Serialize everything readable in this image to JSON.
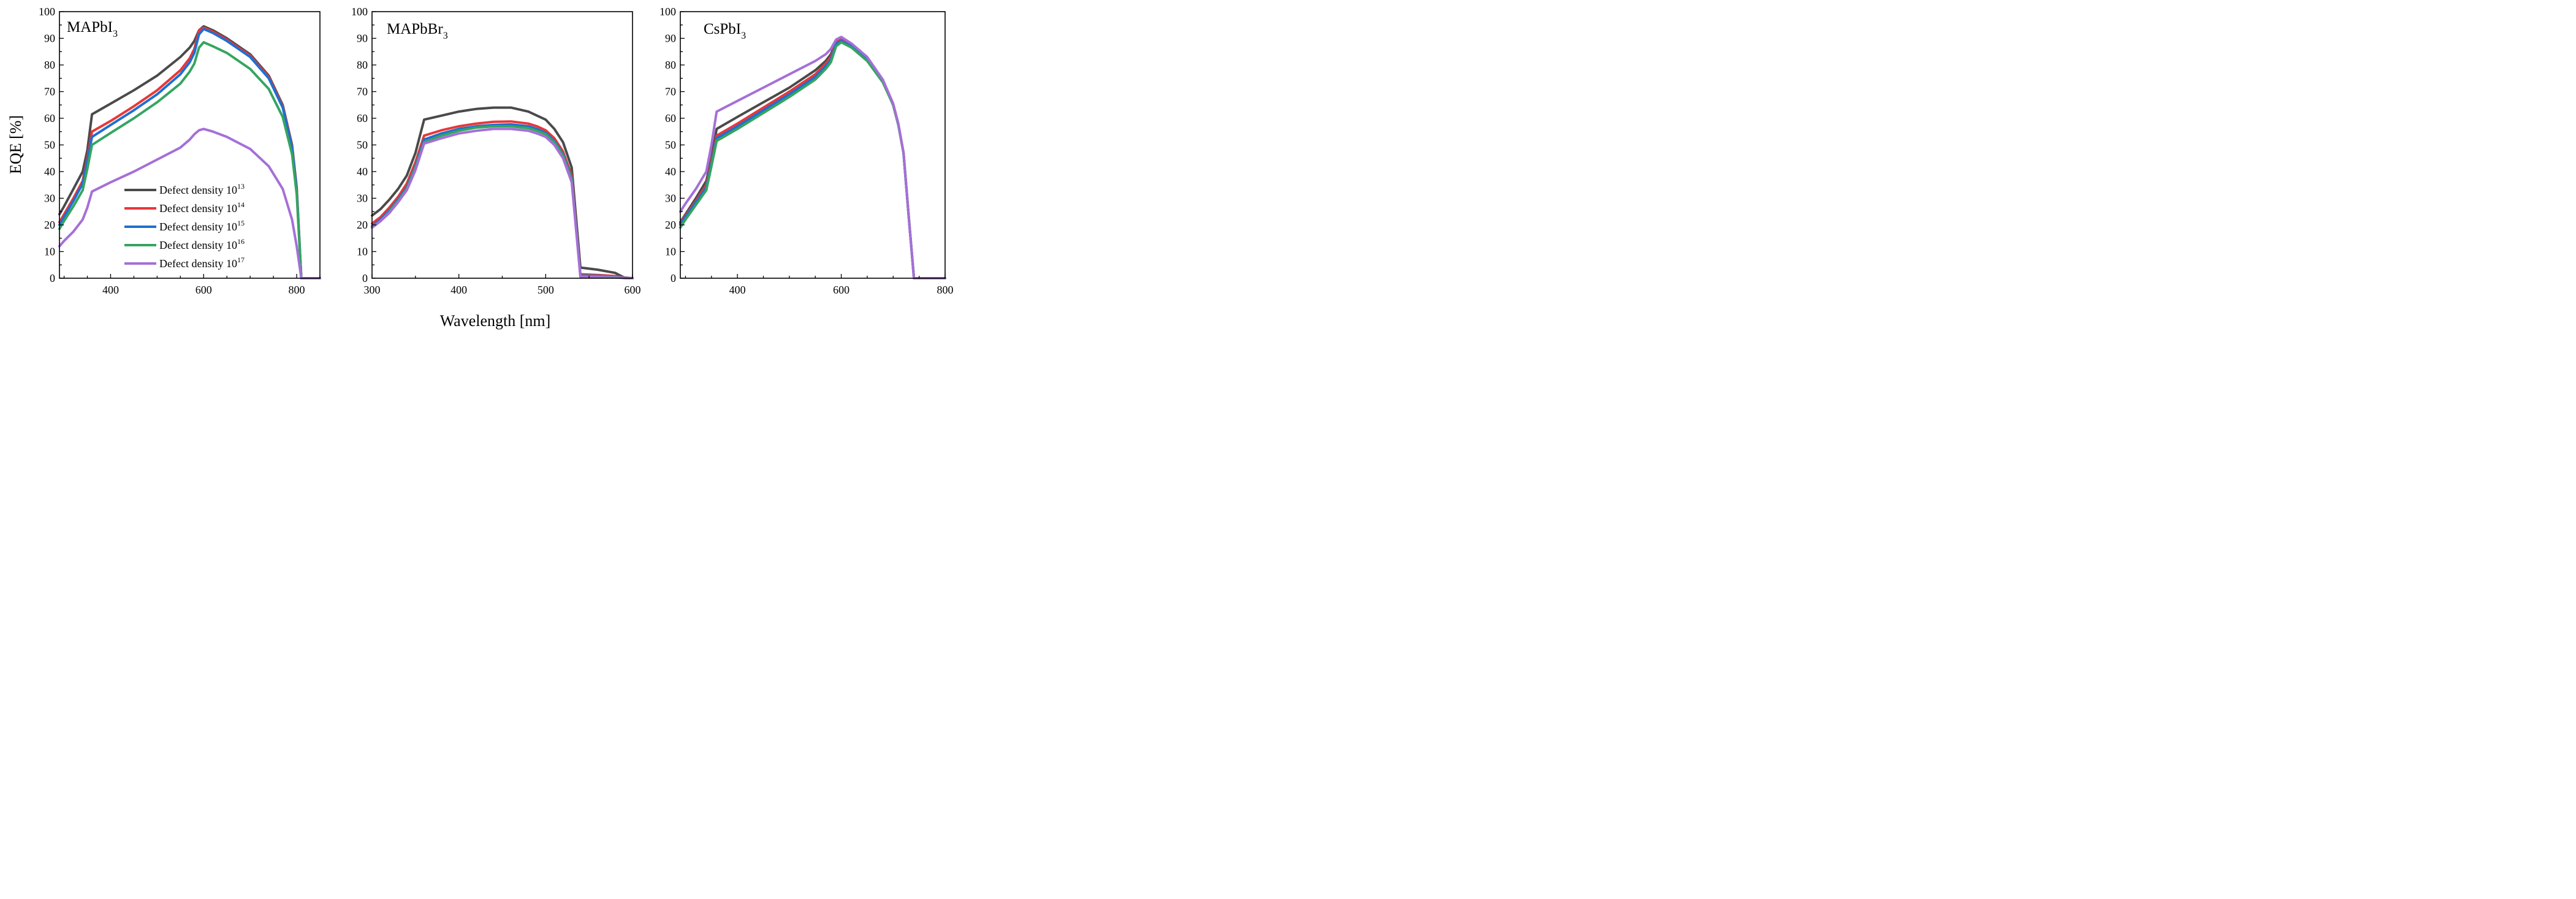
{
  "figure": {
    "xlabel": "Wavelength [nm]",
    "ylabel": "EQE [%]"
  },
  "legend": {
    "position": "lower-left of first panel",
    "entries": [
      {
        "label": "Defect density 10",
        "exponent": "13",
        "color": "#4a4a4a"
      },
      {
        "label": "Defect density 10",
        "exponent": "14",
        "color": "#e8373a"
      },
      {
        "label": "Defect density 10",
        "exponent": "15",
        "color": "#1f6fd0"
      },
      {
        "label": "Defect density 10",
        "exponent": "16",
        "color": "#35a560"
      },
      {
        "label": "Defect density 10",
        "exponent": "17",
        "color": "#a56fd8"
      }
    ]
  },
  "chart_data": [
    {
      "type": "line",
      "title_main": "MAPbI",
      "title_sub": "3",
      "xlabel": "Wavelength [nm]",
      "ylabel": "EQE [%]",
      "xlim": [
        290,
        850
      ],
      "ylim": [
        0,
        100
      ],
      "xticks": [
        400,
        600,
        800
      ],
      "x_minor": 50,
      "yticks": [
        0,
        10,
        20,
        30,
        40,
        50,
        60,
        70,
        80,
        90,
        100
      ],
      "grid": false,
      "series": [
        {
          "name": "Defect density 10^13",
          "color": "#4a4a4a",
          "x": [
            290,
            300,
            320,
            340,
            350,
            360,
            400,
            450,
            500,
            550,
            570,
            580,
            590,
            600,
            620,
            650,
            700,
            740,
            770,
            790,
            800,
            810,
            850
          ],
          "y": [
            24,
            27,
            33.5,
            40,
            48,
            61.5,
            65.5,
            70.5,
            76,
            83,
            86.5,
            89,
            93,
            94.5,
            93,
            90,
            84,
            76,
            65,
            50,
            34,
            0,
            0
          ]
        },
        {
          "name": "Defect density 10^14",
          "color": "#e8373a",
          "x": [
            290,
            300,
            320,
            340,
            350,
            360,
            400,
            450,
            500,
            550,
            570,
            580,
            590,
            600,
            620,
            650,
            700,
            740,
            770,
            790,
            800,
            810,
            850
          ],
          "y": [
            21,
            24,
            30,
            36.5,
            45,
            55,
            59,
            64.5,
            70.5,
            78,
            82.5,
            86,
            93,
            94,
            92.5,
            89.5,
            83.5,
            75.5,
            64.5,
            49.5,
            33.5,
            0,
            0
          ]
        },
        {
          "name": "Defect density 10^15",
          "color": "#1f6fd0",
          "x": [
            290,
            300,
            320,
            340,
            350,
            360,
            400,
            450,
            500,
            550,
            570,
            580,
            590,
            600,
            620,
            650,
            700,
            740,
            770,
            790,
            800,
            810,
            850
          ],
          "y": [
            20,
            23,
            29,
            35.5,
            44,
            53,
            57.5,
            63,
            69,
            76.5,
            81,
            84.5,
            91.5,
            93.5,
            92,
            89,
            83,
            75,
            64,
            49,
            33,
            0,
            0
          ]
        },
        {
          "name": "Defect density 10^16",
          "color": "#35a560",
          "x": [
            290,
            300,
            320,
            340,
            350,
            360,
            400,
            450,
            500,
            550,
            570,
            580,
            590,
            600,
            620,
            650,
            700,
            740,
            770,
            790,
            800,
            810,
            850
          ],
          "y": [
            18.5,
            21.5,
            27,
            33,
            41,
            50,
            54.5,
            60,
            66,
            73,
            77.5,
            80.5,
            86.5,
            88.5,
            87,
            84.5,
            78.5,
            71,
            60.5,
            46.5,
            31.5,
            0,
            0
          ]
        },
        {
          "name": "Defect density 10^17",
          "color": "#a56fd8",
          "x": [
            290,
            300,
            320,
            340,
            350,
            360,
            400,
            450,
            500,
            550,
            570,
            580,
            590,
            600,
            620,
            650,
            700,
            740,
            770,
            790,
            800,
            810,
            850
          ],
          "y": [
            12,
            14,
            17.5,
            22,
            26.5,
            32.5,
            36,
            40,
            44.5,
            49,
            52,
            54,
            55.5,
            56,
            55,
            53,
            48.5,
            42,
            33.5,
            22,
            12,
            0,
            0
          ]
        }
      ]
    },
    {
      "type": "line",
      "title_main": "MAPbBr",
      "title_sub": "3",
      "xlabel": "Wavelength [nm]",
      "ylabel": "EQE [%]",
      "xlim": [
        300,
        600
      ],
      "ylim": [
        0,
        100
      ],
      "xticks": [
        300,
        400,
        500,
        600
      ],
      "x_minor": 50,
      "yticks": [
        0,
        10,
        20,
        30,
        40,
        50,
        60,
        70,
        80,
        90,
        100
      ],
      "grid": false,
      "series": [
        {
          "name": "Defect density 10^13",
          "color": "#4a4a4a",
          "x": [
            300,
            310,
            320,
            330,
            340,
            350,
            360,
            380,
            400,
            420,
            440,
            460,
            480,
            490,
            500,
            510,
            520,
            530,
            540,
            560,
            580,
            590,
            600
          ],
          "y": [
            23.5,
            26,
            29.5,
            33.5,
            38.5,
            47,
            59.5,
            61,
            62.5,
            63.5,
            64,
            64,
            62.5,
            61,
            59.5,
            56,
            51,
            41.5,
            4,
            3.2,
            2,
            0.3,
            0
          ]
        },
        {
          "name": "Defect density 10^14",
          "color": "#e8373a",
          "x": [
            300,
            310,
            320,
            330,
            340,
            350,
            360,
            380,
            400,
            420,
            440,
            460,
            480,
            490,
            500,
            510,
            520,
            530,
            540,
            560,
            580,
            590,
            600
          ],
          "y": [
            20.5,
            23,
            26.5,
            30.5,
            35.5,
            43.5,
            53.5,
            55.5,
            57,
            58,
            58.7,
            58.8,
            58,
            57,
            55.5,
            52.5,
            47.5,
            38.5,
            1.5,
            1.2,
            0.8,
            0.2,
            0
          ]
        },
        {
          "name": "Defect density 10^15",
          "color": "#1f6fd0",
          "x": [
            300,
            310,
            320,
            330,
            340,
            350,
            360,
            380,
            400,
            420,
            440,
            460,
            480,
            490,
            500,
            510,
            520,
            530,
            540,
            560,
            580,
            590,
            600
          ],
          "y": [
            19.5,
            22,
            25.5,
            29.5,
            34,
            42,
            52,
            54.3,
            56,
            57,
            57.5,
            57.7,
            57,
            56,
            54.5,
            51.5,
            46.5,
            37.5,
            1,
            0.9,
            0.6,
            0.1,
            0
          ]
        },
        {
          "name": "Defect density 10^16",
          "color": "#35a560",
          "x": [
            300,
            310,
            320,
            330,
            340,
            350,
            360,
            380,
            400,
            420,
            440,
            460,
            480,
            490,
            500,
            510,
            520,
            530,
            540,
            560,
            580,
            590,
            600
          ],
          "y": [
            19,
            21.5,
            25,
            29,
            33.5,
            41.5,
            51,
            53.5,
            55.3,
            56.5,
            57,
            57,
            56.3,
            55.3,
            54,
            51,
            46,
            37,
            0.8,
            0.7,
            0.5,
            0.1,
            0
          ]
        },
        {
          "name": "Defect density 10^17",
          "color": "#a56fd8",
          "x": [
            300,
            310,
            320,
            330,
            340,
            350,
            360,
            380,
            400,
            420,
            440,
            460,
            480,
            490,
            500,
            510,
            520,
            530,
            540,
            560,
            580,
            590,
            600
          ],
          "y": [
            19,
            21.5,
            24.5,
            28.5,
            33,
            40.5,
            50.5,
            52.5,
            54.3,
            55.3,
            56,
            56,
            55.3,
            54.3,
            53,
            50,
            45,
            36,
            0.5,
            0.4,
            0.3,
            0.1,
            0
          ]
        }
      ]
    },
    {
      "type": "line",
      "title_main": "CsPbI",
      "title_sub": "3",
      "xlabel": "Wavelength [nm]",
      "ylabel": "EQE [%]",
      "xlim": [
        290,
        800
      ],
      "ylim": [
        0,
        100
      ],
      "xticks": [
        400,
        600,
        800
      ],
      "x_minor": 50,
      "yticks": [
        0,
        10,
        20,
        30,
        40,
        50,
        60,
        70,
        80,
        90,
        100
      ],
      "grid": false,
      "series": [
        {
          "name": "Defect density 10^13",
          "color": "#4a4a4a",
          "x": [
            290,
            300,
            320,
            340,
            350,
            360,
            400,
            450,
            500,
            550,
            570,
            580,
            590,
            600,
            620,
            650,
            680,
            700,
            710,
            720,
            730,
            740,
            800
          ],
          "y": [
            21,
            24,
            30,
            36.5,
            45,
            56,
            60.5,
            66,
            71.5,
            78,
            81.5,
            84,
            88.5,
            89.5,
            87,
            82,
            74,
            65,
            57.5,
            47,
            23,
            0,
            0
          ]
        },
        {
          "name": "Defect density 10^14",
          "color": "#e8373a",
          "x": [
            290,
            300,
            320,
            340,
            350,
            360,
            400,
            450,
            500,
            550,
            570,
            580,
            590,
            600,
            620,
            650,
            680,
            700,
            710,
            720,
            730,
            740,
            800
          ],
          "y": [
            20.5,
            23.5,
            29,
            35,
            44,
            53.5,
            58,
            64,
            70,
            76.5,
            80.5,
            83,
            88.5,
            89.5,
            87,
            82,
            74,
            65,
            57.5,
            47,
            23,
            0,
            0
          ]
        },
        {
          "name": "Defect density 10^15",
          "color": "#1f6fd0",
          "x": [
            290,
            300,
            320,
            340,
            350,
            360,
            400,
            450,
            500,
            550,
            570,
            580,
            590,
            600,
            620,
            650,
            680,
            700,
            710,
            720,
            730,
            740,
            800
          ],
          "y": [
            20,
            23,
            28.5,
            34,
            43,
            52.5,
            57,
            63,
            69,
            75.5,
            79.5,
            82,
            88,
            89,
            87,
            82,
            74,
            65,
            57.5,
            47,
            23,
            0,
            0
          ]
        },
        {
          "name": "Defect density 10^16",
          "color": "#35a560",
          "x": [
            290,
            300,
            320,
            340,
            350,
            360,
            400,
            450,
            500,
            550,
            570,
            580,
            590,
            600,
            620,
            650,
            680,
            700,
            710,
            720,
            730,
            740,
            800
          ],
          "y": [
            19,
            22,
            27.5,
            33,
            42,
            51.5,
            56,
            62,
            68,
            74.5,
            78.5,
            81,
            87,
            88.5,
            86.5,
            81.5,
            73.5,
            65,
            57.5,
            47,
            23,
            0,
            0
          ]
        },
        {
          "name": "Defect density 10^17",
          "color": "#a56fd8",
          "x": [
            290,
            300,
            320,
            340,
            350,
            360,
            400,
            450,
            500,
            550,
            570,
            580,
            590,
            600,
            620,
            650,
            680,
            700,
            710,
            720,
            730,
            740,
            800
          ],
          "y": [
            25,
            28,
            33.5,
            40,
            50,
            62.5,
            66.5,
            71.5,
            76.5,
            81.5,
            84,
            86,
            89.5,
            90.5,
            88,
            83,
            74.5,
            65.5,
            58,
            47,
            23,
            0,
            0
          ]
        }
      ]
    }
  ]
}
